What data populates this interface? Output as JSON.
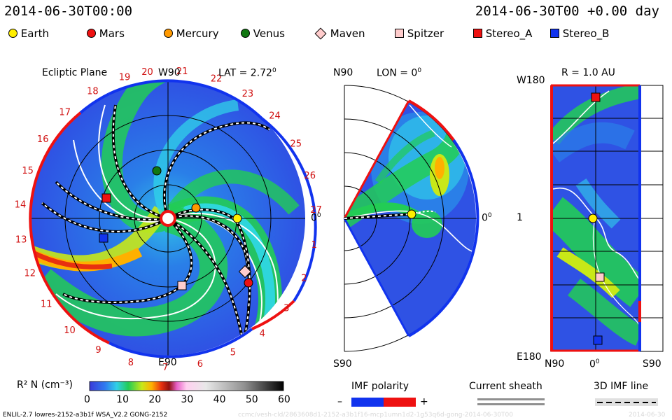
{
  "header": {
    "left_time": "2014-06-30T00:00",
    "right_time": "2014-06-30T00 +0.00 day"
  },
  "legend": [
    {
      "name": "Earth",
      "color": "#ffee00",
      "shape": "circle"
    },
    {
      "name": "Mars",
      "color": "#ee1111",
      "shape": "circle"
    },
    {
      "name": "Mercury",
      "color": "#ff9900",
      "shape": "circle"
    },
    {
      "name": "Venus",
      "color": "#117711",
      "shape": "circle"
    },
    {
      "name": "Maven",
      "color": "#ffcccc",
      "shape": "diamond"
    },
    {
      "name": "Spitzer",
      "color": "#ffcccc",
      "shape": "square"
    },
    {
      "name": "Stereo_A",
      "color": "#ee1111",
      "shape": "square"
    },
    {
      "name": "Stereo_B",
      "color": "#1133ee",
      "shape": "square"
    }
  ],
  "ecliptic": {
    "title": "Ecliptic Plane",
    "top_label": "W90",
    "bottom_label": "E90",
    "right_label": "0",
    "lat_label": "LAT = 2.72",
    "degree_mark": "0",
    "carrington_ticks": [
      "20",
      "21",
      "22",
      "23",
      "24",
      "25",
      "26",
      "27",
      "1",
      "2",
      "3",
      "4",
      "5",
      "6",
      "7",
      "8",
      "9",
      "10",
      "11",
      "12",
      "13",
      "14",
      "15",
      "16",
      "17",
      "18",
      "19"
    ]
  },
  "meridional": {
    "top_label": "N90",
    "bottom_label": "S90",
    "right_label": "0",
    "lon_label": "LON = 0",
    "degree_mark": "0"
  },
  "radial": {
    "title": "R = 1.0 AU",
    "top_left": "W180",
    "bottom_left": "E180",
    "mid_left": "1",
    "bottom_mid": "0",
    "bottom_left_axis": "N90",
    "bottom_right_axis": "S90",
    "degree_mark": "0"
  },
  "colorbar": {
    "label": "R² N (cm⁻³)",
    "ticks": [
      "0",
      "10",
      "20",
      "30",
      "40",
      "50",
      "60"
    ]
  },
  "imf_polarity": {
    "title": "IMF polarity",
    "minus": "–",
    "plus": "+"
  },
  "current_sheath": {
    "title": "Current sheath"
  },
  "imf_line": {
    "title": "3D IMF line"
  },
  "footer": {
    "model": "ENLIL-2.7 lowres-2152-a3b1f WSA_V2.2 GONG-2152",
    "watermark": "ccmc/vesh-cld/2863608d1-2152-a3b1f16-mcp1umn1d2-1g53q6d-gong-2014-06-30T00",
    "watermark_right": "2014-06-30"
  }
}
